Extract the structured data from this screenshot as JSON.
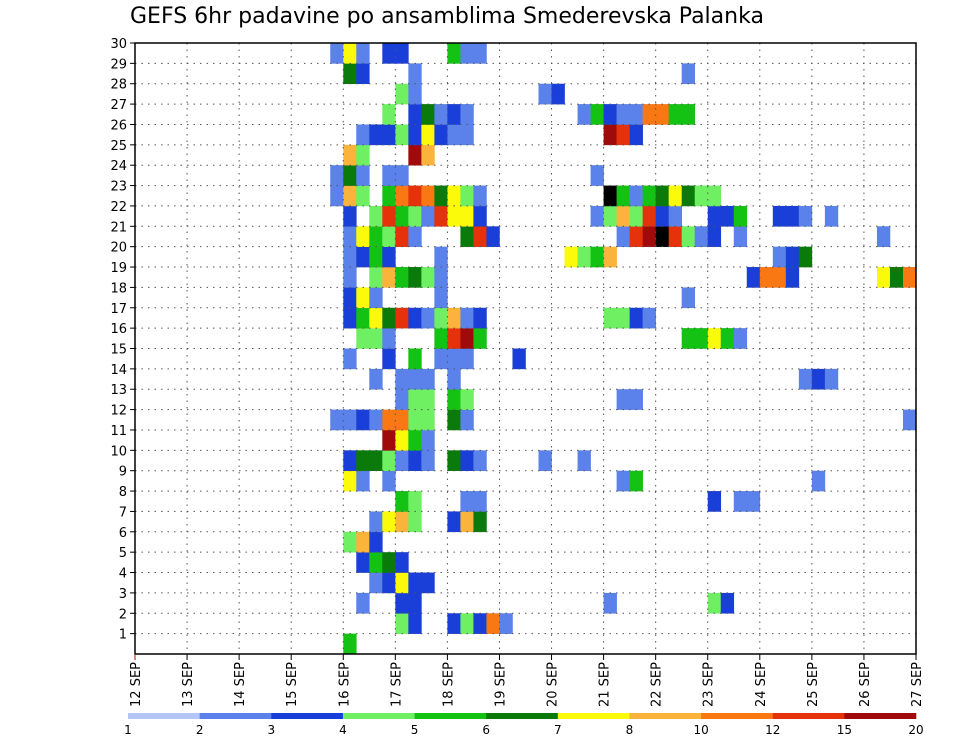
{
  "chart_data": {
    "type": "heatmap",
    "title": "GEFS 6hr padavine po ansamblima Smederevska Palanka",
    "xlabel": "",
    "ylabel": "",
    "x_ticks": [
      "12 SEP",
      "13 SEP",
      "14 SEP",
      "15 SEP",
      "16 SEP",
      "17 SEP",
      "18 SEP",
      "19 SEP",
      "20 SEP",
      "21 SEP",
      "22 SEP",
      "23 SEP",
      "24 SEP",
      "25 SEP",
      "26 SEP",
      "27 SEP"
    ],
    "y_ticks": [
      1,
      2,
      3,
      4,
      5,
      6,
      7,
      8,
      9,
      10,
      11,
      12,
      13,
      14,
      15,
      16,
      17,
      18,
      19,
      20,
      21,
      22,
      23,
      24,
      25,
      26,
      27,
      28,
      29,
      30
    ],
    "time_step_hours": 6,
    "grid": "dotted",
    "colorbar": {
      "labels": [
        "1",
        "2",
        "3",
        "4",
        "5",
        "6",
        "7",
        "8",
        "10",
        "12",
        "15",
        "20"
      ],
      "colors": [
        "#b4c6f8",
        "#5a82ea",
        "#1a3fd8",
        "#6ef062",
        "#14c214",
        "#0a7a0a",
        "#fafa0a",
        "#fab43c",
        "#fa7814",
        "#e6320a",
        "#a00a0a"
      ]
    },
    "cells": [
      [
        0,
        16,
        4
      ],
      [
        1,
        17,
        3
      ],
      [
        1,
        17.25,
        2
      ],
      [
        1,
        18,
        2
      ],
      [
        1,
        18.25,
        3
      ],
      [
        1,
        18.5,
        2
      ],
      [
        1,
        18.75,
        8
      ],
      [
        1,
        19,
        1
      ],
      [
        2,
        16.25,
        1
      ],
      [
        2,
        17,
        2
      ],
      [
        2,
        17.25,
        2
      ],
      [
        2,
        21,
        1
      ],
      [
        2,
        23,
        3
      ],
      [
        2,
        23.25,
        2
      ],
      [
        3,
        16.5,
        1
      ],
      [
        3,
        16.75,
        2
      ],
      [
        3,
        17,
        6
      ],
      [
        3,
        17.25,
        2
      ],
      [
        3,
        17.5,
        2
      ],
      [
        4,
        16.25,
        2
      ],
      [
        4,
        16.5,
        4
      ],
      [
        4,
        16.75,
        5
      ],
      [
        4,
        17,
        2
      ],
      [
        5,
        16,
        3
      ],
      [
        5,
        16.25,
        7
      ],
      [
        5,
        16.5,
        2
      ],
      [
        6,
        16.5,
        1
      ],
      [
        6,
        16.75,
        6
      ],
      [
        6,
        17,
        7
      ],
      [
        6,
        17.25,
        3
      ],
      [
        6,
        18,
        2
      ],
      [
        6,
        18.25,
        7
      ],
      [
        6,
        18.5,
        5
      ],
      [
        7,
        17,
        4
      ],
      [
        7,
        17.25,
        3
      ],
      [
        7,
        18.25,
        1
      ],
      [
        7,
        18.5,
        1
      ],
      [
        7,
        23,
        2
      ],
      [
        7,
        23.5,
        1
      ],
      [
        7,
        23.75,
        1
      ],
      [
        8,
        16,
        6
      ],
      [
        8,
        16.25,
        1
      ],
      [
        8,
        16.75,
        1
      ],
      [
        8,
        21.25,
        1
      ],
      [
        8,
        21.5,
        4
      ],
      [
        8,
        25,
        1
      ],
      [
        9,
        16,
        2
      ],
      [
        9,
        16.25,
        5
      ],
      [
        9,
        16.5,
        5
      ],
      [
        9,
        16.75,
        3
      ],
      [
        9,
        17,
        1
      ],
      [
        9,
        17.25,
        2
      ],
      [
        9,
        17.5,
        1
      ],
      [
        9,
        18,
        5
      ],
      [
        9,
        18.25,
        2
      ],
      [
        9,
        18.5,
        1
      ],
      [
        9,
        19.75,
        1
      ],
      [
        9,
        20.5,
        1
      ],
      [
        10,
        16.75,
        10
      ],
      [
        10,
        17,
        6
      ],
      [
        10,
        17.25,
        4
      ],
      [
        10,
        17.5,
        1
      ],
      [
        11,
        15.75,
        1
      ],
      [
        11,
        16,
        1
      ],
      [
        11,
        16.25,
        2
      ],
      [
        11,
        16.5,
        1
      ],
      [
        11,
        16.75,
        8
      ],
      [
        11,
        17,
        8
      ],
      [
        11,
        17.25,
        3
      ],
      [
        11,
        17.5,
        3
      ],
      [
        11,
        18,
        5
      ],
      [
        11,
        18.25,
        1
      ],
      [
        11,
        26.75,
        1
      ],
      [
        12,
        17,
        1
      ],
      [
        12,
        17.25,
        3
      ],
      [
        12,
        17.5,
        3
      ],
      [
        12,
        18,
        4
      ],
      [
        12,
        18.25,
        3
      ],
      [
        12,
        21.25,
        1
      ],
      [
        12,
        21.5,
        1
      ],
      [
        13,
        16.5,
        1
      ],
      [
        13,
        17,
        1
      ],
      [
        13,
        17.25,
        1
      ],
      [
        13,
        17.5,
        1
      ],
      [
        13,
        18,
        1
      ],
      [
        13,
        24.75,
        1
      ],
      [
        13,
        25,
        2
      ],
      [
        13,
        25.25,
        1
      ],
      [
        14,
        16,
        1
      ],
      [
        14,
        16.75,
        2
      ],
      [
        14,
        17.25,
        4
      ],
      [
        14,
        17.75,
        1
      ],
      [
        14,
        18,
        1
      ],
      [
        14,
        18.25,
        1
      ],
      [
        14,
        19.25,
        2
      ],
      [
        15,
        16.25,
        3
      ],
      [
        15,
        16.5,
        3
      ],
      [
        15,
        16.75,
        1
      ],
      [
        15,
        17.75,
        4
      ],
      [
        15,
        18,
        9
      ],
      [
        15,
        18.25,
        10
      ],
      [
        15,
        18.5,
        4
      ],
      [
        15,
        22.5,
        4
      ],
      [
        15,
        22.75,
        4
      ],
      [
        15,
        23,
        6
      ],
      [
        15,
        23.25,
        4
      ],
      [
        15,
        23.5,
        1
      ],
      [
        16,
        16,
        2
      ],
      [
        16,
        16.25,
        4
      ],
      [
        16,
        16.5,
        6
      ],
      [
        16,
        16.75,
        5
      ],
      [
        16,
        17,
        9
      ],
      [
        16,
        17.25,
        2
      ],
      [
        16,
        17.5,
        1
      ],
      [
        16,
        17.75,
        3
      ],
      [
        16,
        18,
        7
      ],
      [
        16,
        18.25,
        1
      ],
      [
        16,
        18.5,
        2
      ],
      [
        16,
        21,
        3
      ],
      [
        16,
        21.25,
        3
      ],
      [
        16,
        21.5,
        2
      ],
      [
        16,
        21.75,
        1
      ],
      [
        17,
        16,
        2
      ],
      [
        17,
        16.25,
        6
      ],
      [
        17,
        16.5,
        1
      ],
      [
        17,
        17.75,
        1
      ],
      [
        17,
        22.5,
        1
      ],
      [
        18,
        16,
        1
      ],
      [
        18,
        16.5,
        3
      ],
      [
        18,
        16.75,
        7
      ],
      [
        18,
        17,
        4
      ],
      [
        18,
        17.25,
        5
      ],
      [
        18,
        17.5,
        3
      ],
      [
        18,
        17.75,
        1
      ],
      [
        18,
        23.75,
        2
      ],
      [
        18,
        24,
        8
      ],
      [
        18,
        24.25,
        8
      ],
      [
        18,
        24.5,
        2
      ],
      [
        18,
        26.25,
        6
      ],
      [
        18,
        26.5,
        5
      ],
      [
        18,
        26.75,
        8
      ],
      [
        19,
        16,
        1
      ],
      [
        19,
        16.25,
        2
      ],
      [
        19,
        16.5,
        4
      ],
      [
        19,
        16.75,
        2
      ],
      [
        19,
        17.75,
        1
      ],
      [
        19,
        20.25,
        6
      ],
      [
        19,
        20.5,
        3
      ],
      [
        19,
        20.75,
        4
      ],
      [
        19,
        21,
        7
      ],
      [
        19,
        24.25,
        1
      ],
      [
        19,
        24.5,
        2
      ],
      [
        19,
        24.75,
        5
      ],
      [
        20,
        16,
        1
      ],
      [
        20,
        16.25,
        6
      ],
      [
        20,
        16.5,
        4
      ],
      [
        20,
        16.75,
        3
      ],
      [
        20,
        17,
        9
      ],
      [
        20,
        17.25,
        1
      ],
      [
        20,
        18.25,
        5
      ],
      [
        20,
        18.5,
        9
      ],
      [
        20,
        18.75,
        2
      ],
      [
        20,
        21.25,
        1
      ],
      [
        20,
        21.5,
        9
      ],
      [
        20,
        21.75,
        10
      ],
      [
        20,
        22,
        11
      ],
      [
        20,
        22.25,
        9
      ],
      [
        20,
        22.5,
        3
      ],
      [
        20,
        22.75,
        1
      ],
      [
        20,
        23,
        2
      ],
      [
        20,
        23.5,
        1
      ],
      [
        20,
        26.25,
        1
      ],
      [
        21,
        16,
        2
      ],
      [
        21,
        16.5,
        3
      ],
      [
        21,
        16.75,
        9
      ],
      [
        21,
        17,
        4
      ],
      [
        21,
        17.25,
        3
      ],
      [
        21,
        17.5,
        1
      ],
      [
        21,
        17.75,
        9
      ],
      [
        21,
        18,
        6
      ],
      [
        21,
        18.25,
        6
      ],
      [
        21,
        18.5,
        2
      ],
      [
        21,
        20.75,
        1
      ],
      [
        21,
        21,
        3
      ],
      [
        21,
        21.25,
        7
      ],
      [
        21,
        21.5,
        3
      ],
      [
        21,
        21.75,
        9
      ],
      [
        21,
        22,
        2
      ],
      [
        21,
        22.25,
        1
      ],
      [
        21,
        23,
        2
      ],
      [
        21,
        23.25,
        2
      ],
      [
        21,
        23.5,
        4
      ],
      [
        21,
        24.25,
        2
      ],
      [
        21,
        24.5,
        2
      ],
      [
        21,
        24.75,
        1
      ],
      [
        21,
        25.25,
        1
      ],
      [
        22,
        15.75,
        1
      ],
      [
        22,
        16,
        7
      ],
      [
        22,
        16.25,
        3
      ],
      [
        22,
        16.75,
        4
      ],
      [
        22,
        17,
        8
      ],
      [
        22,
        17.25,
        9
      ],
      [
        22,
        17.5,
        8
      ],
      [
        22,
        17.75,
        5
      ],
      [
        22,
        18,
        6
      ],
      [
        22,
        18.25,
        3
      ],
      [
        22,
        18.5,
        1
      ],
      [
        22,
        21,
        11
      ],
      [
        22,
        21.25,
        4
      ],
      [
        22,
        21.5,
        1
      ],
      [
        22,
        21.75,
        4
      ],
      [
        22,
        22,
        5
      ],
      [
        22,
        22.25,
        6
      ],
      [
        22,
        22.5,
        5
      ],
      [
        22,
        22.75,
        3
      ],
      [
        22,
        23,
        3
      ],
      [
        23,
        15.75,
        1
      ],
      [
        23,
        16,
        5
      ],
      [
        23,
        16.25,
        1
      ],
      [
        23,
        16.75,
        1
      ],
      [
        23,
        17,
        1
      ],
      [
        23,
        20.75,
        1
      ],
      [
        24,
        16,
        7
      ],
      [
        24,
        16.25,
        3
      ],
      [
        24,
        17.25,
        10
      ],
      [
        24,
        17.5,
        7
      ],
      [
        25,
        16.25,
        1
      ],
      [
        25,
        16.5,
        2
      ],
      [
        25,
        16.75,
        2
      ],
      [
        25,
        17,
        3
      ],
      [
        25,
        17.25,
        2
      ],
      [
        25,
        17.5,
        6
      ],
      [
        25,
        17.75,
        2
      ],
      [
        25,
        18,
        1
      ],
      [
        25,
        18.25,
        1
      ],
      [
        25,
        21,
        10
      ],
      [
        25,
        21.25,
        9
      ],
      [
        25,
        21.5,
        2
      ],
      [
        26,
        16.75,
        3
      ],
      [
        26,
        17.25,
        2
      ],
      [
        26,
        17.5,
        5
      ],
      [
        26,
        17.75,
        1
      ],
      [
        26,
        18,
        2
      ],
      [
        26,
        18.25,
        1
      ],
      [
        26,
        20.5,
        1
      ],
      [
        26,
        20.75,
        4
      ],
      [
        26,
        21,
        2
      ],
      [
        26,
        21.25,
        1
      ],
      [
        26,
        21.5,
        1
      ],
      [
        26,
        21.75,
        8
      ],
      [
        26,
        22,
        8
      ],
      [
        26,
        22.25,
        4
      ],
      [
        26,
        22.5,
        4
      ],
      [
        27,
        17,
        3
      ],
      [
        27,
        17.25,
        1
      ],
      [
        27,
        19.75,
        1
      ],
      [
        27,
        20,
        2
      ],
      [
        28,
        16,
        5
      ],
      [
        28,
        16.25,
        2
      ],
      [
        28,
        17.25,
        1
      ],
      [
        28,
        22.5,
        1
      ],
      [
        29,
        15.75,
        1
      ],
      [
        29,
        16,
        6
      ],
      [
        29,
        16.25,
        1
      ],
      [
        29,
        16.75,
        2
      ],
      [
        29,
        17,
        2
      ],
      [
        29,
        18,
        4
      ],
      [
        29,
        18.25,
        1
      ],
      [
        29,
        18.5,
        1
      ]
    ]
  }
}
